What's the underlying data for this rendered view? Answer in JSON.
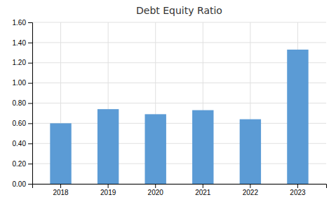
{
  "chart_data": {
    "type": "bar",
    "title": "Debt Equity Ratio",
    "categories": [
      "2018",
      "2019",
      "2020",
      "2021",
      "2022",
      "2023"
    ],
    "values": [
      0.6,
      0.74,
      0.69,
      0.73,
      0.64,
      1.33
    ],
    "color": "#5B9BD5",
    "ylim": [
      0,
      1.6
    ],
    "yticks": [
      {
        "value": 0.0,
        "label": "0.00"
      },
      {
        "value": 0.2,
        "label": "0.20"
      },
      {
        "value": 0.4,
        "label": "0.40"
      },
      {
        "value": 0.6,
        "label": "0.60"
      },
      {
        "value": 0.8,
        "label": "0.80"
      },
      {
        "value": 1.0,
        "label": "1.00"
      },
      {
        "value": 1.2,
        "label": "1.20"
      },
      {
        "value": 1.4,
        "label": "1.40"
      },
      {
        "value": 1.6,
        "label": "1.60"
      }
    ],
    "grid": true
  }
}
